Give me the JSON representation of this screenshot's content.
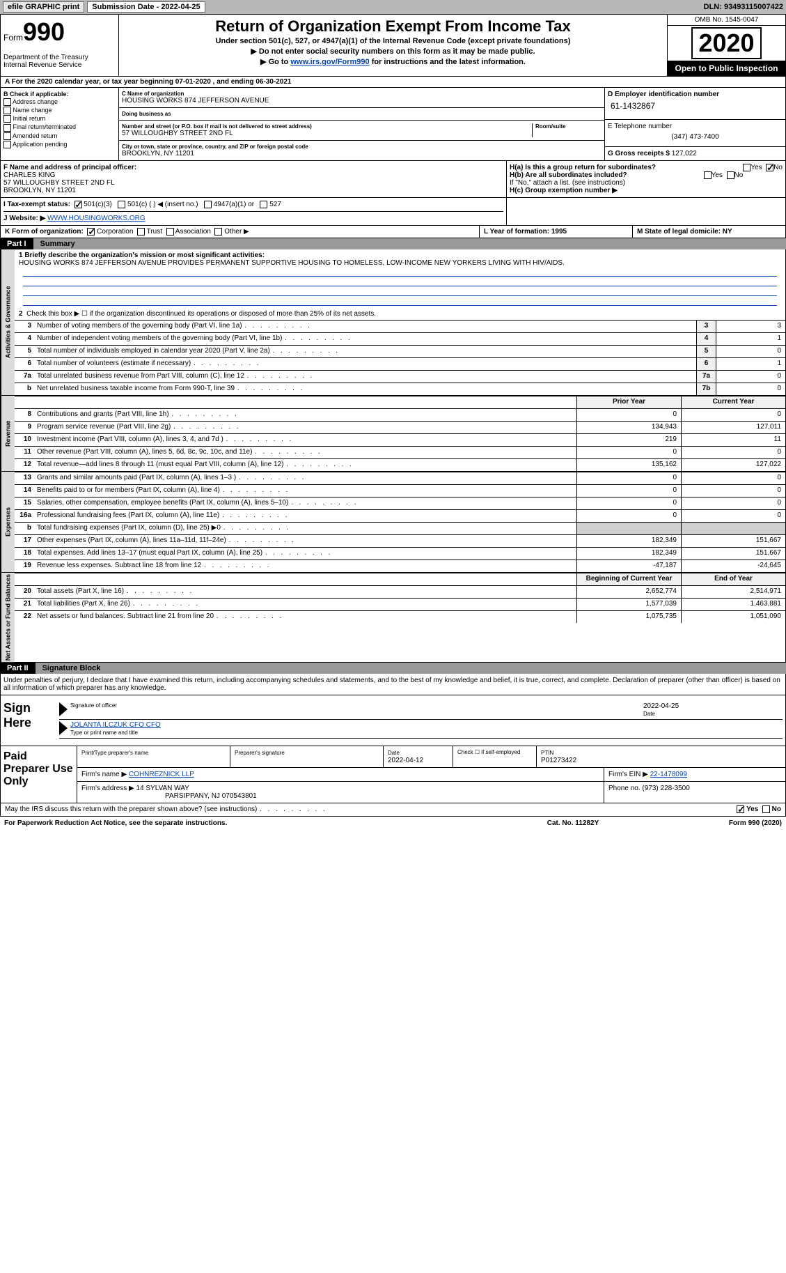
{
  "topbar": {
    "efile": "efile GRAPHIC print",
    "sub_date_label": "Submission Date - 2022-04-25",
    "dln": "DLN: 93493115007422"
  },
  "header": {
    "form_word": "Form",
    "form_num": "990",
    "dept": "Department of the Treasury\nInternal Revenue Service",
    "title": "Return of Organization Exempt From Income Tax",
    "sub1": "Under section 501(c), 527, or 4947(a)(1) of the Internal Revenue Code (except private foundations)",
    "sub2": "▶ Do not enter social security numbers on this form as it may be made public.",
    "sub3_pre": "▶ Go to ",
    "sub3_link": "www.irs.gov/Form990",
    "sub3_post": " for instructions and the latest information.",
    "omb": "OMB No. 1545-0047",
    "year": "2020",
    "open": "Open to Public Inspection"
  },
  "line_a": "A For the 2020 calendar year, or tax year beginning 07-01-2020    , and ending 06-30-2021",
  "col_b": {
    "title": "B Check if applicable:",
    "items": [
      "Address change",
      "Name change",
      "Initial return",
      "Final return/terminated",
      "Amended return",
      "Application pending"
    ]
  },
  "col_c": {
    "name_lbl": "C Name of organization",
    "name": "HOUSING WORKS 874 JEFFERSON AVENUE",
    "dba_lbl": "Doing business as",
    "dba": "",
    "addr_lbl": "Number and street (or P.O. box if mail is not delivered to street address)",
    "room_lbl": "Room/suite",
    "addr": "57 WILLOUGHBY STREET 2ND FL",
    "city_lbl": "City or town, state or province, country, and ZIP or foreign postal code",
    "city": "BROOKLYN, NY  11201"
  },
  "col_d": {
    "ein_lbl": "D Employer identification number",
    "ein": "61-1432867",
    "tel_lbl": "E Telephone number",
    "tel": "(347) 473-7400",
    "gross_lbl": "G Gross receipts $",
    "gross": "127,022"
  },
  "row_f": {
    "f_lbl": "F Name and address of principal officer:",
    "f_name": "CHARLES KING",
    "f_addr1": "57 WILLOUGHBY STREET 2ND FL",
    "f_addr2": "BROOKLYN, NY  11201",
    "ha_lbl": "H(a)  Is this a group return for subordinates?",
    "ha_yes": "Yes",
    "ha_no": "No",
    "hb_lbl": "H(b)  Are all subordinates included?",
    "hb_yes": "Yes",
    "hb_no": "No",
    "hb_note": "If \"No,\" attach a list. (see instructions)",
    "hc_lbl": "H(c)  Group exemption number ▶"
  },
  "row_i": {
    "lbl": "I    Tax-exempt status:",
    "opts": [
      "501(c)(3)",
      "501(c) (   ) ◀ (insert no.)",
      "4947(a)(1) or",
      "527"
    ]
  },
  "row_j": {
    "lbl": "J   Website: ▶",
    "val": "WWW.HOUSINGWORKS.ORG"
  },
  "row_k": {
    "k": "K Form of organization:",
    "opts": [
      "Corporation",
      "Trust",
      "Association",
      "Other ▶"
    ],
    "l": "L Year of formation: 1995",
    "m": "M State of legal domicile: NY"
  },
  "part1": {
    "label": "Part I",
    "title": "Summary",
    "q1_pre": "1  Briefly describe the organization's mission or most significant activities:",
    "q1_text": "HOUSING WORKS 874 JEFFERSON AVENUE PROVIDES PERMANENT SUPPORTIVE HOUSING TO HOMELESS, LOW-INCOME NEW YORKERS LIVING WITH HIV/AIDS.",
    "q2": "Check this box ▶ ☐  if the organization discontinued its operations or disposed of more than 25% of its net assets.",
    "gov_rows": [
      {
        "n": "3",
        "label": "Number of voting members of the governing body (Part VI, line 1a)",
        "box": "3",
        "v": "3"
      },
      {
        "n": "4",
        "label": "Number of independent voting members of the governing body (Part VI, line 1b)",
        "box": "4",
        "v": "1"
      },
      {
        "n": "5",
        "label": "Total number of individuals employed in calendar year 2020 (Part V, line 2a)",
        "box": "5",
        "v": "0"
      },
      {
        "n": "6",
        "label": "Total number of volunteers (estimate if necessary)",
        "box": "6",
        "v": "1"
      },
      {
        "n": "7a",
        "label": "Total unrelated business revenue from Part VIII, column (C), line 12",
        "box": "7a",
        "v": "0"
      },
      {
        "n": "b",
        "label": "Net unrelated business taxable income from Form 990-T, line 39",
        "box": "7b",
        "v": "0"
      }
    ],
    "col_prior": "Prior Year",
    "col_current": "Current Year",
    "rev_rows": [
      {
        "n": "8",
        "label": "Contributions and grants (Part VIII, line 1h)",
        "p": "0",
        "c": "0"
      },
      {
        "n": "9",
        "label": "Program service revenue (Part VIII, line 2g)",
        "p": "134,943",
        "c": "127,011"
      },
      {
        "n": "10",
        "label": "Investment income (Part VIII, column (A), lines 3, 4, and 7d )",
        "p": "219",
        "c": "11"
      },
      {
        "n": "11",
        "label": "Other revenue (Part VIII, column (A), lines 5, 6d, 8c, 9c, 10c, and 11e)",
        "p": "0",
        "c": "0"
      },
      {
        "n": "12",
        "label": "Total revenue—add lines 8 through 11 (must equal Part VIII, column (A), line 12)",
        "p": "135,162",
        "c": "127,022"
      }
    ],
    "exp_rows": [
      {
        "n": "13",
        "label": "Grants and similar amounts paid (Part IX, column (A), lines 1–3 )",
        "p": "0",
        "c": "0"
      },
      {
        "n": "14",
        "label": "Benefits paid to or for members (Part IX, column (A), line 4)",
        "p": "0",
        "c": "0"
      },
      {
        "n": "15",
        "label": "Salaries, other compensation, employee benefits (Part IX, column (A), lines 5–10)",
        "p": "0",
        "c": "0"
      },
      {
        "n": "16a",
        "label": "Professional fundraising fees (Part IX, column (A), line 11e)",
        "p": "0",
        "c": "0"
      },
      {
        "n": "b",
        "label": "Total fundraising expenses (Part IX, column (D), line 25) ▶0",
        "p": "",
        "c": "",
        "grey": true
      },
      {
        "n": "17",
        "label": "Other expenses (Part IX, column (A), lines 11a–11d, 11f–24e)",
        "p": "182,349",
        "c": "151,667"
      },
      {
        "n": "18",
        "label": "Total expenses. Add lines 13–17 (must equal Part IX, column (A), line 25)",
        "p": "182,349",
        "c": "151,667"
      },
      {
        "n": "19",
        "label": "Revenue less expenses. Subtract line 18 from line 12",
        "p": "-47,187",
        "c": "-24,645"
      }
    ],
    "col_begin": "Beginning of Current Year",
    "col_end": "End of Year",
    "net_rows": [
      {
        "n": "20",
        "label": "Total assets (Part X, line 16)",
        "p": "2,652,774",
        "c": "2,514,971"
      },
      {
        "n": "21",
        "label": "Total liabilities (Part X, line 26)",
        "p": "1,577,039",
        "c": "1,463,881"
      },
      {
        "n": "22",
        "label": "Net assets or fund balances. Subtract line 21 from line 20",
        "p": "1,075,735",
        "c": "1,051,090"
      }
    ],
    "vlabel_gov": "Activities & Governance",
    "vlabel_rev": "Revenue",
    "vlabel_exp": "Expenses",
    "vlabel_net": "Net Assets or Fund Balances"
  },
  "part2": {
    "label": "Part II",
    "title": "Signature Block",
    "decl": "Under penalties of perjury, I declare that I have examined this return, including accompanying schedules and statements, and to the best of my knowledge and belief, it is true, correct, and complete. Declaration of preparer (other than officer) is based on all information of which preparer has any knowledge.",
    "sign_here": "Sign Here",
    "sig_of_officer": "Signature of officer",
    "sig_date": "2022-04-25",
    "sig_date_lbl": "Date",
    "officer_name": "JOLANTA ILCZUK CFO  CFO",
    "officer_name_lbl": "Type or print name and title",
    "paid_label": "Paid Preparer Use Only",
    "prep_name_lbl": "Print/Type preparer's name",
    "prep_sig_lbl": "Preparer's signature",
    "prep_date_lbl": "Date",
    "prep_date": "2022-04-12",
    "self_emp": "Check ☐ if self-employed",
    "ptin_lbl": "PTIN",
    "ptin": "P01273422",
    "firm_name_lbl": "Firm's name    ▶",
    "firm_name": "COHNREZNICK LLP",
    "firm_ein_lbl": "Firm's EIN ▶",
    "firm_ein": "22-1478099",
    "firm_addr_lbl": "Firm's address ▶",
    "firm_addr": "14 SYLVAN WAY",
    "firm_city": "PARSIPPANY, NJ  070543801",
    "firm_phone_lbl": "Phone no.",
    "firm_phone": "(973) 228-3500",
    "discuss": "May the IRS discuss this return with the preparer shown above? (see instructions)",
    "discuss_yes": "Yes",
    "discuss_no": "No"
  },
  "footer": {
    "left": "For Paperwork Reduction Act Notice, see the separate instructions.",
    "mid": "Cat. No. 11282Y",
    "right": "Form 990 (2020)"
  }
}
